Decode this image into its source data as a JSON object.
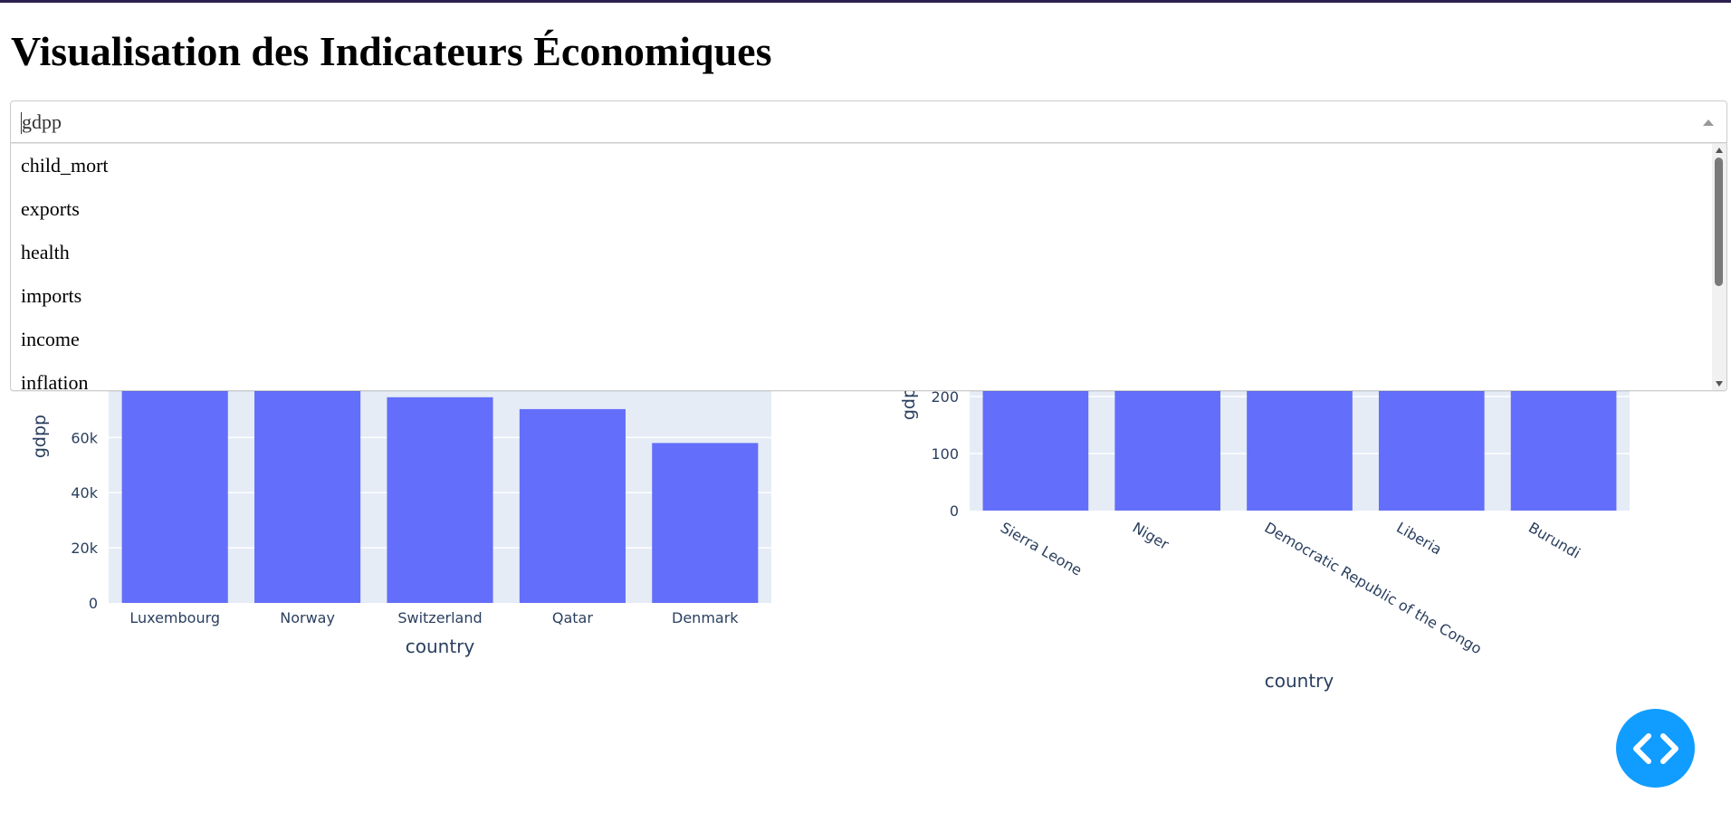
{
  "page": {
    "title": "Visualisation des Indicateurs Économiques"
  },
  "dropdown": {
    "value": "gdpp",
    "options": [
      "child_mort",
      "exports",
      "health",
      "imports",
      "income",
      "inflation"
    ]
  },
  "chart_data": [
    {
      "type": "bar",
      "categories": [
        "Luxembourg",
        "Norway",
        "Switzerland",
        "Qatar",
        "Denmark"
      ],
      "values": [
        105000,
        87800,
        74600,
        70300,
        58000
      ],
      "xlabel": "country",
      "ylabel": "gdpp",
      "yticks": [
        "0",
        "20k",
        "40k",
        "60k"
      ],
      "ytick_values": [
        0,
        20000,
        40000,
        60000
      ],
      "color": "#636efa",
      "plot_bg": "#e5ecf6"
    },
    {
      "type": "bar",
      "categories": [
        "Sierra Leone",
        "Niger",
        "Democratic Republic of the Congo",
        "Liberia",
        "Burundi"
      ],
      "values": [
        399,
        348,
        334,
        327,
        231
      ],
      "xlabel": "country",
      "ylabel": "gdpp",
      "yticks": [
        "0",
        "100",
        "200"
      ],
      "ytick_values": [
        0,
        100,
        200
      ],
      "color": "#636efa",
      "plot_bg": "#e5ecf6"
    }
  ],
  "colors": {
    "accent": "#119dff",
    "bar": "#636efa",
    "axis_text": "#2a3f5f"
  },
  "icons": {
    "fab": "code-brackets-icon"
  }
}
